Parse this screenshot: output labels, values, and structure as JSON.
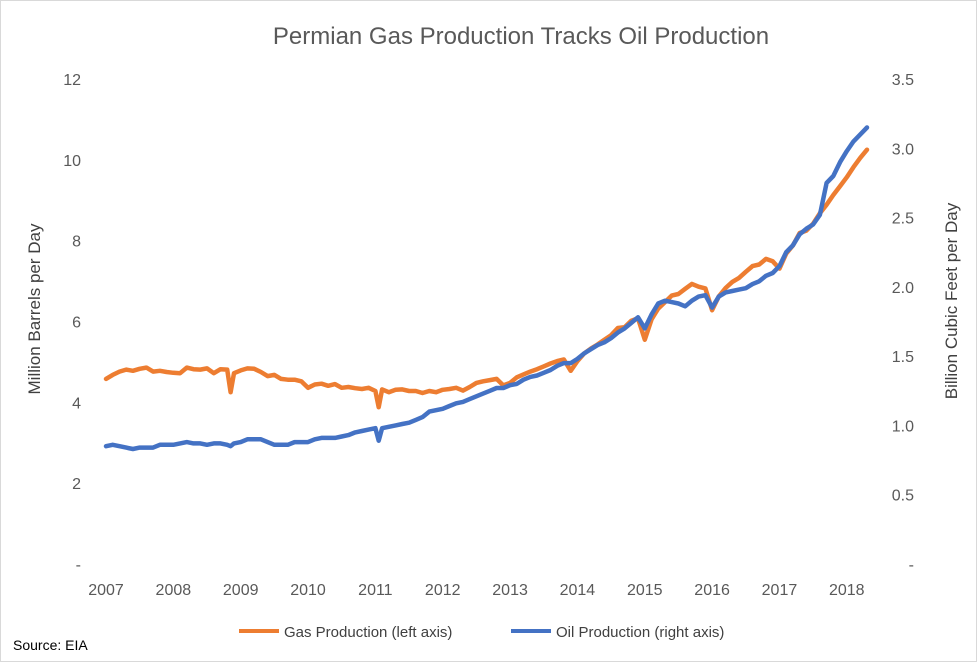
{
  "chart_data": {
    "type": "line",
    "title": "Permian Gas Production Tracks Oil Production",
    "ylabel_left": "Million Barrels per Day",
    "ylabel_right": "Billion Cubic Feet per Day",
    "xlim": [
      2007,
      2018.3
    ],
    "ylim_left": [
      0,
      12
    ],
    "ylim_right": [
      0,
      3.5
    ],
    "x_tick_labels": [
      "2007",
      "2008",
      "2009",
      "2010",
      "2011",
      "2012",
      "2013",
      "2014",
      "2015",
      "2016",
      "2017",
      "2018"
    ],
    "y_left_tick_labels": [
      "-",
      "2",
      "4",
      "6",
      "8",
      "10",
      "12"
    ],
    "y_right_tick_labels": [
      "-",
      "0.5",
      "1.0",
      "1.5",
      "2.0",
      "2.5",
      "3.0",
      "3.5"
    ],
    "grid": false,
    "legend_position": "bottom",
    "source": "Source: EIA",
    "series": [
      {
        "name": "Gas Production (left axis)",
        "axis": "left",
        "color": "#ED7D31",
        "points": [
          [
            2007.0,
            4.58
          ],
          [
            2007.1,
            4.68
          ],
          [
            2007.2,
            4.76
          ],
          [
            2007.3,
            4.81
          ],
          [
            2007.4,
            4.78
          ],
          [
            2007.5,
            4.83
          ],
          [
            2007.6,
            4.86
          ],
          [
            2007.7,
            4.76
          ],
          [
            2007.8,
            4.78
          ],
          [
            2007.9,
            4.75
          ],
          [
            2008.0,
            4.73
          ],
          [
            2008.1,
            4.72
          ],
          [
            2008.2,
            4.86
          ],
          [
            2008.3,
            4.82
          ],
          [
            2008.4,
            4.81
          ],
          [
            2008.5,
            4.84
          ],
          [
            2008.6,
            4.72
          ],
          [
            2008.7,
            4.82
          ],
          [
            2008.8,
            4.81
          ],
          [
            2008.85,
            4.25
          ],
          [
            2008.9,
            4.72
          ],
          [
            2009.0,
            4.79
          ],
          [
            2009.1,
            4.84
          ],
          [
            2009.2,
            4.83
          ],
          [
            2009.3,
            4.75
          ],
          [
            2009.4,
            4.65
          ],
          [
            2009.5,
            4.68
          ],
          [
            2009.6,
            4.58
          ],
          [
            2009.7,
            4.56
          ],
          [
            2009.8,
            4.56
          ],
          [
            2009.9,
            4.52
          ],
          [
            2010.0,
            4.36
          ],
          [
            2010.1,
            4.44
          ],
          [
            2010.2,
            4.46
          ],
          [
            2010.3,
            4.41
          ],
          [
            2010.4,
            4.45
          ],
          [
            2010.5,
            4.36
          ],
          [
            2010.6,
            4.38
          ],
          [
            2010.7,
            4.35
          ],
          [
            2010.8,
            4.33
          ],
          [
            2010.9,
            4.36
          ],
          [
            2011.0,
            4.28
          ],
          [
            2011.05,
            3.88
          ],
          [
            2011.1,
            4.32
          ],
          [
            2011.2,
            4.25
          ],
          [
            2011.3,
            4.31
          ],
          [
            2011.4,
            4.32
          ],
          [
            2011.5,
            4.28
          ],
          [
            2011.6,
            4.28
          ],
          [
            2011.7,
            4.23
          ],
          [
            2011.8,
            4.28
          ],
          [
            2011.9,
            4.25
          ],
          [
            2012.0,
            4.31
          ],
          [
            2012.1,
            4.33
          ],
          [
            2012.2,
            4.36
          ],
          [
            2012.3,
            4.29
          ],
          [
            2012.4,
            4.38
          ],
          [
            2012.5,
            4.48
          ],
          [
            2012.6,
            4.52
          ],
          [
            2012.7,
            4.55
          ],
          [
            2012.8,
            4.58
          ],
          [
            2012.9,
            4.42
          ],
          [
            2013.0,
            4.48
          ],
          [
            2013.1,
            4.62
          ],
          [
            2013.2,
            4.69
          ],
          [
            2013.3,
            4.76
          ],
          [
            2013.4,
            4.82
          ],
          [
            2013.5,
            4.89
          ],
          [
            2013.6,
            4.96
          ],
          [
            2013.7,
            5.02
          ],
          [
            2013.8,
            5.06
          ],
          [
            2013.9,
            4.78
          ],
          [
            2014.0,
            5.02
          ],
          [
            2014.1,
            5.21
          ],
          [
            2014.2,
            5.33
          ],
          [
            2014.3,
            5.43
          ],
          [
            2014.4,
            5.55
          ],
          [
            2014.5,
            5.66
          ],
          [
            2014.6,
            5.84
          ],
          [
            2014.7,
            5.86
          ],
          [
            2014.8,
            6.02
          ],
          [
            2014.9,
            6.08
          ],
          [
            2015.0,
            5.55
          ],
          [
            2015.1,
            6.05
          ],
          [
            2015.2,
            6.32
          ],
          [
            2015.3,
            6.48
          ],
          [
            2015.4,
            6.64
          ],
          [
            2015.5,
            6.68
          ],
          [
            2015.6,
            6.81
          ],
          [
            2015.7,
            6.93
          ],
          [
            2015.8,
            6.86
          ],
          [
            2015.9,
            6.82
          ],
          [
            2016.0,
            6.28
          ],
          [
            2016.1,
            6.62
          ],
          [
            2016.2,
            6.83
          ],
          [
            2016.3,
            6.98
          ],
          [
            2016.4,
            7.08
          ],
          [
            2016.5,
            7.23
          ],
          [
            2016.6,
            7.37
          ],
          [
            2016.7,
            7.41
          ],
          [
            2016.8,
            7.55
          ],
          [
            2016.9,
            7.49
          ],
          [
            2017.0,
            7.31
          ],
          [
            2017.1,
            7.68
          ],
          [
            2017.2,
            7.88
          ],
          [
            2017.3,
            8.19
          ],
          [
            2017.4,
            8.25
          ],
          [
            2017.5,
            8.42
          ],
          [
            2017.6,
            8.68
          ],
          [
            2017.7,
            8.89
          ],
          [
            2017.8,
            9.13
          ],
          [
            2017.9,
            9.35
          ],
          [
            2018.0,
            9.57
          ],
          [
            2018.1,
            9.82
          ],
          [
            2018.2,
            10.05
          ],
          [
            2018.3,
            10.25
          ]
        ]
      },
      {
        "name": "Oil Production (right axis)",
        "axis": "right",
        "color": "#4472C4",
        "points": [
          [
            2007.0,
            0.85
          ],
          [
            2007.1,
            0.86
          ],
          [
            2007.2,
            0.85
          ],
          [
            2007.3,
            0.84
          ],
          [
            2007.4,
            0.83
          ],
          [
            2007.5,
            0.84
          ],
          [
            2007.6,
            0.84
          ],
          [
            2007.7,
            0.84
          ],
          [
            2007.8,
            0.86
          ],
          [
            2007.9,
            0.86
          ],
          [
            2008.0,
            0.86
          ],
          [
            2008.1,
            0.87
          ],
          [
            2008.2,
            0.88
          ],
          [
            2008.3,
            0.87
          ],
          [
            2008.4,
            0.87
          ],
          [
            2008.5,
            0.86
          ],
          [
            2008.6,
            0.87
          ],
          [
            2008.7,
            0.87
          ],
          [
            2008.8,
            0.86
          ],
          [
            2008.85,
            0.85
          ],
          [
            2008.9,
            0.87
          ],
          [
            2009.0,
            0.88
          ],
          [
            2009.1,
            0.9
          ],
          [
            2009.2,
            0.9
          ],
          [
            2009.3,
            0.9
          ],
          [
            2009.4,
            0.88
          ],
          [
            2009.5,
            0.86
          ],
          [
            2009.6,
            0.86
          ],
          [
            2009.7,
            0.86
          ],
          [
            2009.8,
            0.88
          ],
          [
            2009.9,
            0.88
          ],
          [
            2010.0,
            0.88
          ],
          [
            2010.1,
            0.9
          ],
          [
            2010.2,
            0.91
          ],
          [
            2010.3,
            0.91
          ],
          [
            2010.4,
            0.91
          ],
          [
            2010.5,
            0.92
          ],
          [
            2010.6,
            0.93
          ],
          [
            2010.7,
            0.95
          ],
          [
            2010.8,
            0.96
          ],
          [
            2010.9,
            0.97
          ],
          [
            2011.0,
            0.98
          ],
          [
            2011.05,
            0.89
          ],
          [
            2011.1,
            0.98
          ],
          [
            2011.2,
            0.99
          ],
          [
            2011.3,
            1.0
          ],
          [
            2011.4,
            1.01
          ],
          [
            2011.5,
            1.02
          ],
          [
            2011.6,
            1.04
          ],
          [
            2011.7,
            1.06
          ],
          [
            2011.8,
            1.1
          ],
          [
            2011.9,
            1.11
          ],
          [
            2012.0,
            1.12
          ],
          [
            2012.1,
            1.14
          ],
          [
            2012.2,
            1.16
          ],
          [
            2012.3,
            1.17
          ],
          [
            2012.4,
            1.19
          ],
          [
            2012.5,
            1.21
          ],
          [
            2012.6,
            1.23
          ],
          [
            2012.7,
            1.25
          ],
          [
            2012.8,
            1.27
          ],
          [
            2012.9,
            1.27
          ],
          [
            2013.0,
            1.29
          ],
          [
            2013.1,
            1.3
          ],
          [
            2013.2,
            1.33
          ],
          [
            2013.3,
            1.35
          ],
          [
            2013.4,
            1.36
          ],
          [
            2013.5,
            1.38
          ],
          [
            2013.6,
            1.4
          ],
          [
            2013.7,
            1.43
          ],
          [
            2013.8,
            1.45
          ],
          [
            2013.9,
            1.45
          ],
          [
            2014.0,
            1.48
          ],
          [
            2014.1,
            1.52
          ],
          [
            2014.2,
            1.55
          ],
          [
            2014.3,
            1.58
          ],
          [
            2014.4,
            1.6
          ],
          [
            2014.5,
            1.63
          ],
          [
            2014.6,
            1.67
          ],
          [
            2014.7,
            1.7
          ],
          [
            2014.8,
            1.74
          ],
          [
            2014.9,
            1.78
          ],
          [
            2015.0,
            1.7
          ],
          [
            2015.1,
            1.8
          ],
          [
            2015.2,
            1.88
          ],
          [
            2015.3,
            1.9
          ],
          [
            2015.4,
            1.89
          ],
          [
            2015.5,
            1.88
          ],
          [
            2015.6,
            1.86
          ],
          [
            2015.7,
            1.9
          ],
          [
            2015.8,
            1.93
          ],
          [
            2015.9,
            1.94
          ],
          [
            2016.0,
            1.85
          ],
          [
            2016.1,
            1.93
          ],
          [
            2016.2,
            1.96
          ],
          [
            2016.3,
            1.97
          ],
          [
            2016.4,
            1.98
          ],
          [
            2016.5,
            1.99
          ],
          [
            2016.6,
            2.02
          ],
          [
            2016.7,
            2.04
          ],
          [
            2016.8,
            2.08
          ],
          [
            2016.9,
            2.1
          ],
          [
            2017.0,
            2.15
          ],
          [
            2017.1,
            2.25
          ],
          [
            2017.2,
            2.3
          ],
          [
            2017.3,
            2.38
          ],
          [
            2017.4,
            2.42
          ],
          [
            2017.5,
            2.45
          ],
          [
            2017.6,
            2.52
          ],
          [
            2017.7,
            2.75
          ],
          [
            2017.8,
            2.8
          ],
          [
            2017.9,
            2.9
          ],
          [
            2018.0,
            2.98
          ],
          [
            2018.1,
            3.05
          ],
          [
            2018.2,
            3.1
          ],
          [
            2018.3,
            3.15
          ]
        ]
      }
    ]
  }
}
